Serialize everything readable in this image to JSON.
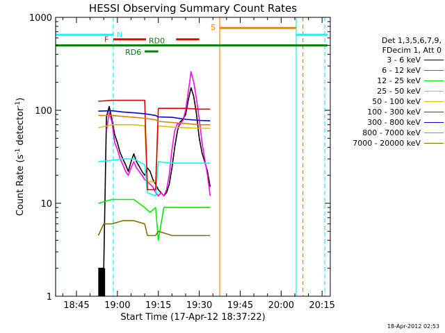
{
  "chart_data": {
    "type": "line",
    "title": "HESSI Observing Summary Count Rates",
    "xlabel": "Start Time (17-Apr-12 18:37:22)",
    "ylabel_parts": {
      "prefix": "Count Rate (s",
      "sup1": "-1",
      "mid": " detector",
      "sup2": "-1",
      "suffix": ")"
    },
    "yscale": "log",
    "ylim": [
      1,
      1000
    ],
    "xlim_minutes": [
      "18:37:22",
      "20:18:00"
    ],
    "x_ticks": [
      "18:45",
      "19:00",
      "19:15",
      "19:30",
      "19:45",
      "20:00",
      "20:15"
    ],
    "y_ticks": [
      "1",
      "10",
      "100",
      "1000"
    ],
    "legend": {
      "header": [
        "Det 1,3,5,6,7,9,",
        "FDecim 1, Att 0"
      ],
      "entries": [
        {
          "label": "3 - 6 keV",
          "color": "#000000"
        },
        {
          "label": "6 - 12 keV",
          "color": "#ff00ff"
        },
        {
          "label": "12 - 25 keV",
          "color": "#00ee00"
        },
        {
          "label": "25 - 50 keV",
          "color": "#00ffff"
        },
        {
          "label": "50 - 100 keV",
          "color": "#d4c400"
        },
        {
          "label": "100 - 300 keV",
          "color": "#dd0000"
        },
        {
          "label": "300 - 800 keV",
          "color": "#0000dd"
        },
        {
          "label": "800 - 7000 keV",
          "color": "#e08000"
        },
        {
          "label": "7000 - 20000 keV",
          "color": "#807000"
        }
      ]
    },
    "flag_bars": [
      {
        "label": "N",
        "color": "#00ffff",
        "level": 650,
        "segments": [
          [
            "18:37:22",
            "18:58:30"
          ],
          [
            "20:05:30",
            "20:17:00"
          ]
        ]
      },
      {
        "label": "S",
        "color": "#ff8000",
        "level": 770,
        "segments": [
          [
            "19:37:30",
            "20:05:30"
          ]
        ]
      },
      {
        "label": "F",
        "color": "#ee0000",
        "level": 580,
        "segments": [
          [
            "18:58:30",
            "19:10:30"
          ],
          [
            "19:21:30",
            "19:30:00"
          ]
        ]
      },
      {
        "label": "RD0",
        "color": "#008000",
        "level": 500,
        "segments": [
          [
            "18:37:22",
            "20:17:00"
          ]
        ]
      },
      {
        "label": "RD6",
        "color": "#008000",
        "level": 430,
        "segments": [
          [
            "19:10:00",
            "19:15:00"
          ]
        ]
      }
    ],
    "vertical_markers": [
      {
        "time": "18:58:30",
        "color": "#00ffff",
        "style": "dashed"
      },
      {
        "time": "20:16:00",
        "color": "#00ffff",
        "style": "dashed"
      },
      {
        "time": "19:37:30",
        "color": "#ff8000",
        "style": "solid"
      },
      {
        "time": "20:08:00",
        "color": "#ff8000",
        "style": "dashed"
      },
      {
        "time": "20:05:30",
        "color": "#00ffff",
        "style": "solid"
      },
      {
        "time": "18:37:22",
        "color": "#00ffff",
        "style": "solid"
      }
    ],
    "series": [
      {
        "name": "3 - 6 keV",
        "color": "#000000",
        "points": [
          [
            "18:53:00",
            2
          ],
          [
            "18:55:00",
            2
          ],
          [
            "18:56:00",
            85
          ],
          [
            "18:57:00",
            110
          ],
          [
            "18:58:00",
            80
          ],
          [
            "18:59:00",
            55
          ],
          [
            "19:00:00",
            45
          ],
          [
            "19:01:00",
            35
          ],
          [
            "19:02:00",
            30
          ],
          [
            "19:03:00",
            26
          ],
          [
            "19:04:00",
            22
          ],
          [
            "19:05:00",
            28
          ],
          [
            "19:06:00",
            34
          ],
          [
            "19:07:00",
            28
          ],
          [
            "19:08:00",
            25
          ],
          [
            "19:09:00",
            22
          ],
          [
            "19:10:00",
            20
          ],
          [
            "19:11:00",
            24
          ],
          [
            "19:12:00",
            22
          ],
          [
            "19:13:00",
            18
          ],
          [
            "19:14:00",
            16
          ],
          [
            "19:15:00",
            14
          ],
          [
            "19:16:00",
            13
          ],
          [
            "19:17:00",
            12
          ],
          [
            "19:18:00",
            13
          ],
          [
            "19:19:00",
            16
          ],
          [
            "19:20:00",
            24
          ],
          [
            "19:21:00",
            40
          ],
          [
            "19:22:00",
            60
          ],
          [
            "19:23:00",
            75
          ],
          [
            "19:24:00",
            80
          ],
          [
            "19:25:00",
            90
          ],
          [
            "19:26:00",
            130
          ],
          [
            "19:27:00",
            175
          ],
          [
            "19:28:00",
            140
          ],
          [
            "19:29:00",
            90
          ],
          [
            "19:30:00",
            50
          ],
          [
            "19:31:00",
            35
          ],
          [
            "19:32:00",
            28
          ],
          [
            "19:33:00",
            22
          ],
          [
            "19:34:00",
            15
          ]
        ]
      },
      {
        "name": "6 - 12 keV",
        "color": "#ff00ff",
        "points": [
          [
            "18:56:00",
            60
          ],
          [
            "18:57:00",
            95
          ],
          [
            "18:58:00",
            75
          ],
          [
            "18:59:00",
            45
          ],
          [
            "19:00:00",
            38
          ],
          [
            "19:01:00",
            30
          ],
          [
            "19:02:00",
            26
          ],
          [
            "19:03:00",
            22
          ],
          [
            "19:04:00",
            20
          ],
          [
            "19:05:00",
            24
          ],
          [
            "19:06:00",
            28
          ],
          [
            "19:07:00",
            24
          ],
          [
            "19:08:00",
            22
          ],
          [
            "19:09:00",
            20
          ],
          [
            "19:10:00",
            18
          ],
          [
            "19:11:00",
            17
          ],
          [
            "19:12:00",
            16
          ],
          [
            "19:13:00",
            15
          ],
          [
            "19:14:00",
            13
          ],
          [
            "19:15:00",
            12
          ],
          [
            "19:16:00",
            13
          ],
          [
            "19:17:00",
            12
          ],
          [
            "19:18:00",
            14
          ],
          [
            "19:19:00",
            20
          ],
          [
            "19:20:00",
            38
          ],
          [
            "19:21:00",
            60
          ],
          [
            "19:22:00",
            72
          ],
          [
            "19:23:00",
            70
          ],
          [
            "19:24:00",
            78
          ],
          [
            "19:25:00",
            100
          ],
          [
            "19:26:00",
            160
          ],
          [
            "19:27:00",
            260
          ],
          [
            "19:28:00",
            200
          ],
          [
            "19:29:00",
            130
          ],
          [
            "19:30:00",
            80
          ],
          [
            "19:31:00",
            45
          ],
          [
            "19:32:00",
            30
          ],
          [
            "19:33:00",
            20
          ],
          [
            "19:34:00",
            12
          ]
        ]
      },
      {
        "name": "12 - 25 keV",
        "color": "#00ee00",
        "points": [
          [
            "18:53:00",
            10
          ],
          [
            "18:58:00",
            11
          ],
          [
            "19:02:00",
            11
          ],
          [
            "19:06:00",
            11
          ],
          [
            "19:10:00",
            9
          ],
          [
            "19:12:00",
            8
          ],
          [
            "19:14:00",
            9
          ],
          [
            "19:15:00",
            4
          ],
          [
            "19:17:00",
            9
          ],
          [
            "19:20:00",
            9
          ],
          [
            "19:24:00",
            9
          ],
          [
            "19:28:00",
            9
          ],
          [
            "19:32:00",
            9
          ],
          [
            "19:34:00",
            9
          ]
        ]
      },
      {
        "name": "25 - 50 keV",
        "color": "#00ffff",
        "points": [
          [
            "18:53:00",
            28
          ],
          [
            "18:58:00",
            29
          ],
          [
            "19:02:00",
            30
          ],
          [
            "19:06:00",
            30
          ],
          [
            "19:10:00",
            26
          ],
          [
            "19:11:00",
            13
          ],
          [
            "19:14:00",
            12
          ],
          [
            "19:15:00",
            28
          ],
          [
            "19:20:00",
            27
          ],
          [
            "19:25:00",
            27
          ],
          [
            "19:30:00",
            27
          ],
          [
            "19:34:00",
            27
          ]
        ]
      },
      {
        "name": "50 - 100 keV",
        "color": "#d4c400",
        "points": [
          [
            "18:53:00",
            65
          ],
          [
            "18:58:00",
            70
          ],
          [
            "19:02:00",
            70
          ],
          [
            "19:06:00",
            70
          ],
          [
            "19:10:00",
            68
          ],
          [
            "19:11:00",
            17
          ],
          [
            "19:14:00",
            17
          ],
          [
            "19:15:00",
            68
          ],
          [
            "19:20:00",
            66
          ],
          [
            "19:25:00",
            65
          ],
          [
            "19:30:00",
            64
          ],
          [
            "19:34:00",
            64
          ]
        ]
      },
      {
        "name": "100 - 300 keV",
        "color": "#dd0000",
        "points": [
          [
            "18:53:00",
            125
          ],
          [
            "18:58:00",
            128
          ],
          [
            "19:02:00",
            128
          ],
          [
            "19:06:00",
            128
          ],
          [
            "19:10:00",
            128
          ],
          [
            "19:11:00",
            14
          ],
          [
            "19:14:00",
            14
          ],
          [
            "19:15:00",
            105
          ],
          [
            "19:20:00",
            105
          ],
          [
            "19:25:00",
            105
          ],
          [
            "19:30:00",
            103
          ],
          [
            "19:34:00",
            103
          ]
        ]
      },
      {
        "name": "300 - 800 keV",
        "color": "#0000dd",
        "points": [
          [
            "18:53:00",
            98
          ],
          [
            "18:58:00",
            99
          ],
          [
            "19:02:00",
            96
          ],
          [
            "19:06:00",
            94
          ],
          [
            "19:10:00",
            92
          ],
          [
            "19:14:00",
            88
          ],
          [
            "19:15:00",
            85
          ],
          [
            "19:20:00",
            84
          ],
          [
            "19:25:00",
            80
          ],
          [
            "19:30:00",
            78
          ],
          [
            "19:34:00",
            77
          ]
        ]
      },
      {
        "name": "800 - 7000 keV",
        "color": "#e08000",
        "points": [
          [
            "18:53:00",
            88
          ],
          [
            "18:58:00",
            88
          ],
          [
            "19:02:00",
            86
          ],
          [
            "19:06:00",
            84
          ],
          [
            "19:10:00",
            82
          ],
          [
            "19:14:00",
            79
          ],
          [
            "19:15:00",
            76
          ],
          [
            "19:20:00",
            74
          ],
          [
            "19:25:00",
            72
          ],
          [
            "19:30:00",
            70
          ],
          [
            "19:34:00",
            70
          ]
        ]
      },
      {
        "name": "7000 - 20000 keV",
        "color": "#807000",
        "points": [
          [
            "18:53:00",
            4.5
          ],
          [
            "18:55:00",
            6
          ],
          [
            "18:58:00",
            6
          ],
          [
            "19:02:00",
            6.5
          ],
          [
            "19:06:00",
            6.5
          ],
          [
            "19:10:00",
            6
          ],
          [
            "19:11:00",
            4.5
          ],
          [
            "19:14:00",
            4.5
          ],
          [
            "19:15:00",
            5
          ],
          [
            "19:20:00",
            4.5
          ],
          [
            "19:25:00",
            4.5
          ],
          [
            "19:30:00",
            4.5
          ],
          [
            "19:34:00",
            4.5
          ]
        ]
      }
    ]
  },
  "timestamp": "18-Apr-2012 02:53"
}
